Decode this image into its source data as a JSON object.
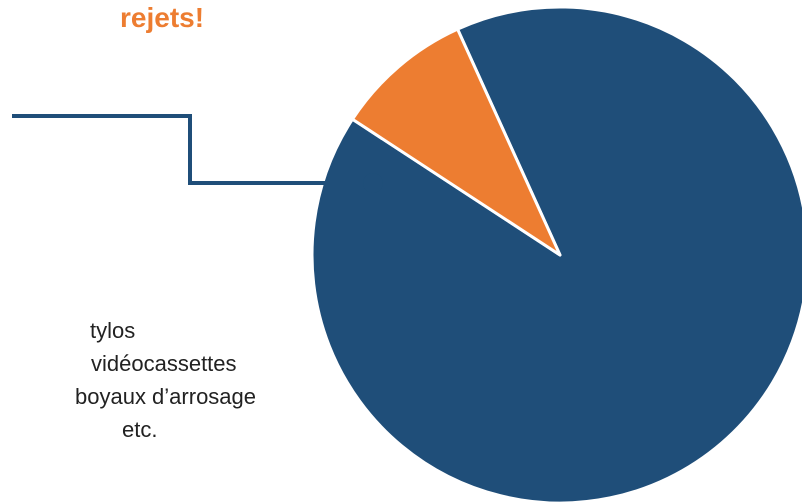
{
  "heading": "rejets!",
  "list_items": [
    "tylos",
    "vidéocassettes",
    "boyaux d’arrosage",
    "etc."
  ],
  "colors": {
    "accent": "#ED7D31",
    "primary": "#1F4E79",
    "text": "#222222",
    "leader_line": "#1F4E79"
  },
  "chart_data": {
    "type": "pie",
    "values": [
      91,
      9
    ],
    "colors": [
      "#1F4E79",
      "#ED7D31"
    ]
  }
}
